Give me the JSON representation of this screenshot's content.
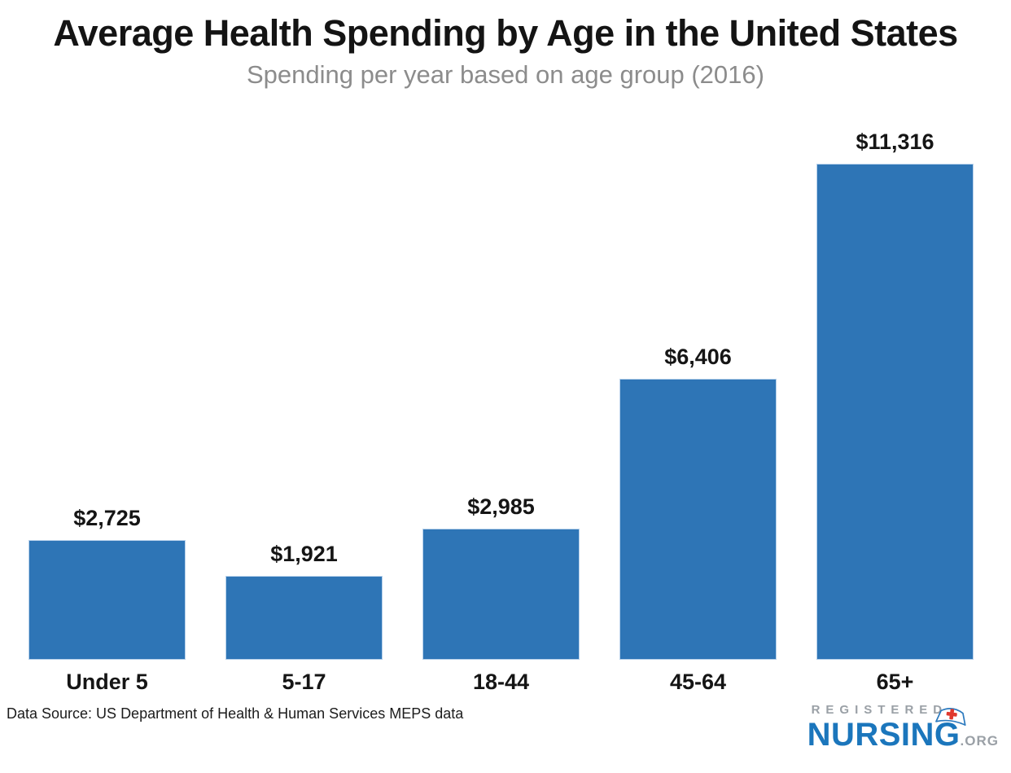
{
  "header": {
    "title": "Average Health Spending by Age in the United States",
    "subtitle": "Spending per year based on age group (2016)"
  },
  "chart_data": {
    "type": "bar",
    "categories": [
      "Under 5",
      "5-17",
      "18-44",
      "45-64",
      "65+"
    ],
    "values": [
      2725,
      1921,
      2985,
      6406,
      11316
    ],
    "value_labels": [
      "$2,725",
      "$1,921",
      "$2,985",
      "$6,406",
      "$11,316"
    ],
    "title": "Average Health Spending by Age in the United States",
    "subtitle": "Spending per year based on age group (2016)",
    "xlabel": "",
    "ylabel": "",
    "ylim": [
      0,
      11316
    ],
    "grid": false,
    "legend": "none",
    "bar_color": "#2e75b6",
    "bar_border_color": "#b7d1eb",
    "label_color": "#151515"
  },
  "footer": {
    "data_source": "Data Source: US Department of Health & Human Services MEPS data",
    "logo": {
      "registered": "REGISTERED",
      "nursing": "NURSING",
      "org": ".ORG",
      "nursing_color": "#1b76bc",
      "registered_color": "#9aa0a6",
      "org_color": "#9aa0a6",
      "cap_outline_color": "#2b79be",
      "cross_color": "#e0392e"
    }
  }
}
